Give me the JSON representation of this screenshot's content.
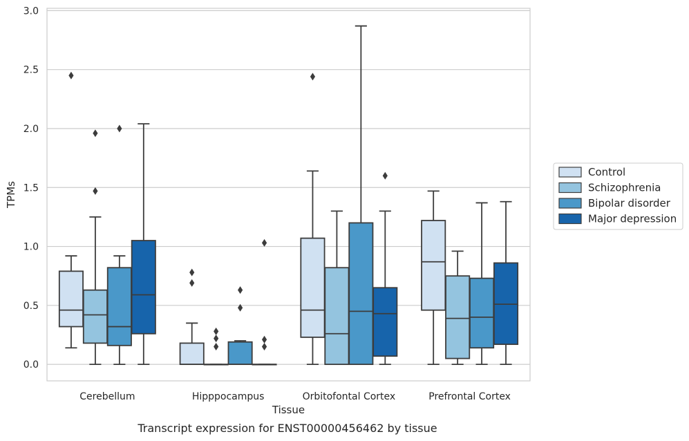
{
  "chart_data": {
    "type": "box",
    "title": "",
    "caption": "Transcript expression for ENST00000456462 by tissue",
    "xlabel": "Tissue",
    "ylabel": "TPMs",
    "ylim": [
      -0.14,
      3.02
    ],
    "yticks": [
      "0.0",
      "0.5",
      "1.0",
      "1.5",
      "2.0",
      "2.5",
      "3.0"
    ],
    "grid": "horizontal",
    "legend_position": "right",
    "categories": [
      "Cerebellum",
      "Hipppocampus",
      "Orbitofontal Cortex",
      "Prefrontal Cortex"
    ],
    "series": [
      {
        "name": "Control",
        "color": "#d0e1f2",
        "boxes": [
          {
            "q1": 0.32,
            "median": 0.46,
            "q3": 0.79,
            "whisker_low": 0.14,
            "whisker_high": 0.92,
            "outliers": [
              2.45
            ]
          },
          {
            "q1": 0.0,
            "median": 0.0,
            "q3": 0.18,
            "whisker_low": 0.0,
            "whisker_high": 0.35,
            "outliers": [
              0.69,
              0.78
            ]
          },
          {
            "q1": 0.23,
            "median": 0.46,
            "q3": 1.07,
            "whisker_low": 0.0,
            "whisker_high": 1.64,
            "outliers": [
              2.44
            ]
          },
          {
            "q1": 0.46,
            "median": 0.87,
            "q3": 1.22,
            "whisker_low": 0.0,
            "whisker_high": 1.47,
            "outliers": []
          }
        ]
      },
      {
        "name": "Schizophrenia",
        "color": "#94c4df",
        "boxes": [
          {
            "q1": 0.18,
            "median": 0.42,
            "q3": 0.63,
            "whisker_low": 0.0,
            "whisker_high": 1.25,
            "outliers": [
              1.47,
              1.96
            ]
          },
          {
            "q1": 0.0,
            "median": 0.0,
            "q3": 0.0,
            "whisker_low": 0.0,
            "whisker_high": 0.0,
            "outliers": [
              0.15,
              0.22,
              0.28
            ]
          },
          {
            "q1": 0.0,
            "median": 0.26,
            "q3": 0.82,
            "whisker_low": 0.0,
            "whisker_high": 1.3,
            "outliers": []
          },
          {
            "q1": 0.05,
            "median": 0.39,
            "q3": 0.75,
            "whisker_low": 0.0,
            "whisker_high": 0.96,
            "outliers": []
          }
        ]
      },
      {
        "name": "Bipolar disorder",
        "color": "#4a98c9",
        "boxes": [
          {
            "q1": 0.16,
            "median": 0.32,
            "q3": 0.82,
            "whisker_low": 0.0,
            "whisker_high": 0.92,
            "outliers": [
              2.0
            ]
          },
          {
            "q1": 0.0,
            "median": 0.0,
            "q3": 0.19,
            "whisker_low": 0.0,
            "whisker_high": 0.2,
            "outliers": [
              0.48,
              0.63
            ]
          },
          {
            "q1": 0.0,
            "median": 0.45,
            "q3": 1.2,
            "whisker_low": 0.0,
            "whisker_high": 2.87,
            "outliers": []
          },
          {
            "q1": 0.14,
            "median": 0.4,
            "q3": 0.73,
            "whisker_low": 0.0,
            "whisker_high": 1.37,
            "outliers": []
          }
        ]
      },
      {
        "name": "Major depression",
        "color": "#1764ab",
        "boxes": [
          {
            "q1": 0.26,
            "median": 0.59,
            "q3": 1.05,
            "whisker_low": 0.0,
            "whisker_high": 2.04,
            "outliers": []
          },
          {
            "q1": 0.0,
            "median": 0.0,
            "q3": 0.0,
            "whisker_low": 0.0,
            "whisker_high": 0.0,
            "outliers": [
              0.15,
              0.21,
              1.03
            ]
          },
          {
            "q1": 0.07,
            "median": 0.43,
            "q3": 0.65,
            "whisker_low": 0.0,
            "whisker_high": 1.3,
            "outliers": [
              1.6
            ]
          },
          {
            "q1": 0.17,
            "median": 0.51,
            "q3": 0.86,
            "whisker_low": 0.0,
            "whisker_high": 1.38,
            "outliers": []
          }
        ]
      }
    ]
  }
}
